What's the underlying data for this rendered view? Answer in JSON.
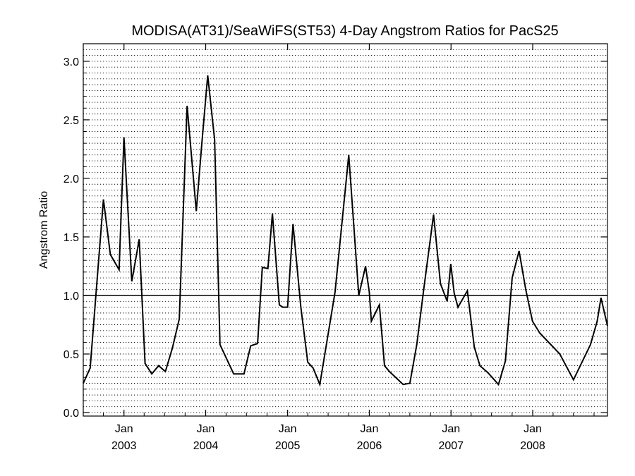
{
  "chart_data": {
    "type": "line",
    "title": "MODISA(AT31)/SeaWiFS(ST53) 4-Day Angstrom Ratios for PacS25",
    "xlabel": "",
    "ylabel": "Angstrom Ratio",
    "xlim": [
      "2002-07-03",
      "2008-11-30"
    ],
    "ylim": [
      -0.03,
      3.15
    ],
    "y_ticks": [
      0.0,
      0.5,
      1.0,
      1.5,
      2.0,
      2.5,
      3.0
    ],
    "y_tick_labels": [
      "0.0",
      "0.5",
      "1.0",
      "1.5",
      "2.0",
      "2.5",
      "3.0"
    ],
    "x_ticks": [
      {
        "date": "2003-01-01",
        "month": "Jan",
        "year": "2003"
      },
      {
        "date": "2004-01-01",
        "month": "Jan",
        "year": "2004"
      },
      {
        "date": "2005-01-01",
        "month": "Jan",
        "year": "2005"
      },
      {
        "date": "2006-01-01",
        "month": "Jan",
        "year": "2006"
      },
      {
        "date": "2007-01-01",
        "month": "Jan",
        "year": "2007"
      },
      {
        "date": "2008-01-01",
        "month": "Jan",
        "year": "2008"
      }
    ],
    "grid": "horizontal dotted",
    "reference_line": 1.0,
    "series": [
      {
        "color": "#000000",
        "x": [
          "2002-07-03",
          "2002-08-03",
          "2002-10-01",
          "2002-11-01",
          "2002-12-10",
          "2003-01-01",
          "2003-02-05",
          "2003-03-10",
          "2003-04-05",
          "2003-05-05",
          "2003-06-05",
          "2003-07-05",
          "2003-08-05",
          "2003-09-05",
          "2003-10-10",
          "2003-11-20",
          "2003-12-15",
          "2004-01-10",
          "2004-02-10",
          "2004-03-05",
          "2004-05-05",
          "2004-06-20",
          "2004-07-20",
          "2004-08-20",
          "2004-09-10",
          "2004-10-05",
          "2004-10-25",
          "2004-11-25",
          "2004-12-10",
          "2005-01-01",
          "2005-01-25",
          "2005-03-01",
          "2005-04-01",
          "2005-04-25",
          "2005-05-25",
          "2005-08-01",
          "2005-10-01",
          "2005-11-15",
          "2005-12-15",
          "2006-01-01",
          "2006-01-10",
          "2006-02-15",
          "2006-03-10",
          "2006-04-01",
          "2006-06-01",
          "2006-07-01",
          "2006-08-01",
          "2006-09-01",
          "2006-10-15",
          "2006-11-15",
          "2006-12-15",
          "2006-12-31",
          "2007-01-15",
          "2007-02-01",
          "2007-03-15",
          "2007-04-15",
          "2007-05-10",
          "2007-06-15",
          "2007-08-01",
          "2007-09-01",
          "2007-10-01",
          "2007-11-01",
          "2007-12-01",
          "2007-12-31",
          "2008-02-01",
          "2008-05-01",
          "2008-07-01",
          "2008-09-15",
          "2008-10-15",
          "2008-11-01",
          "2008-11-30"
        ],
        "y": [
          0.25,
          0.38,
          1.82,
          1.35,
          1.22,
          2.35,
          1.12,
          1.48,
          0.42,
          0.33,
          0.4,
          0.35,
          0.55,
          0.8,
          2.62,
          1.72,
          2.3,
          2.88,
          2.33,
          0.58,
          0.33,
          0.33,
          0.57,
          0.59,
          1.24,
          1.23,
          1.7,
          0.92,
          0.9,
          0.9,
          1.61,
          0.9,
          0.43,
          0.38,
          0.24,
          1.03,
          2.2,
          1.0,
          1.25,
          1.03,
          0.78,
          0.92,
          0.4,
          0.35,
          0.24,
          0.25,
          0.58,
          1.05,
          1.69,
          1.1,
          0.95,
          1.27,
          1.02,
          0.9,
          1.04,
          0.56,
          0.4,
          0.34,
          0.24,
          0.44,
          1.15,
          1.38,
          1.05,
          0.78,
          0.68,
          0.5,
          0.28,
          0.58,
          0.78,
          0.98,
          0.74
        ]
      }
    ]
  }
}
